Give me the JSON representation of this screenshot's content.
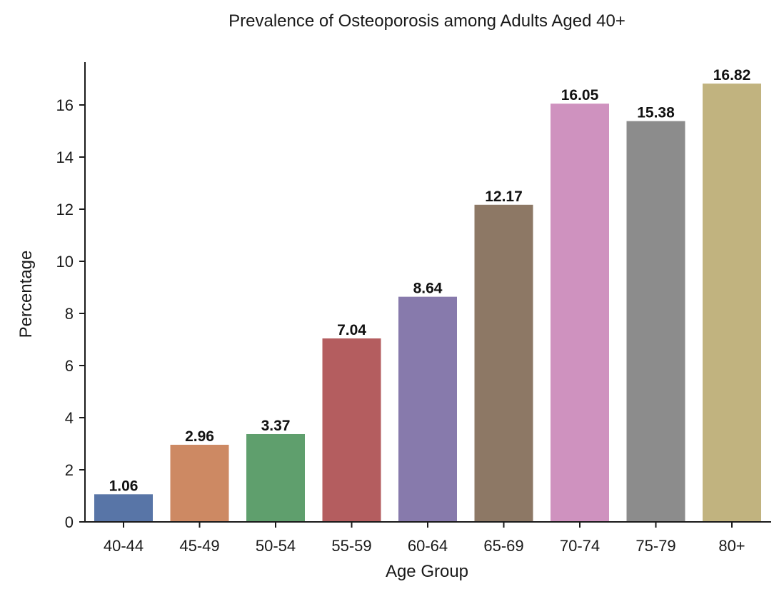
{
  "chart_data": {
    "type": "bar",
    "title": "Prevalence of Osteoporosis among Adults Aged 40+",
    "xlabel": "Age Group",
    "ylabel": "Percentage",
    "categories": [
      "40-44",
      "45-49",
      "50-54",
      "55-59",
      "60-64",
      "65-69",
      "70-74",
      "75-79",
      "80+"
    ],
    "values": [
      1.06,
      2.96,
      3.37,
      7.04,
      8.64,
      12.17,
      16.05,
      15.38,
      16.82
    ],
    "value_labels": [
      "1.06",
      "2.96",
      "3.37",
      "7.04",
      "8.64",
      "12.17",
      "16.05",
      "15.38",
      "16.82"
    ],
    "colors": [
      "#5875a7",
      "#cd8963",
      "#5f9f6d",
      "#b45d5f",
      "#877aac",
      "#8d7865",
      "#cf92bf",
      "#8c8c8c",
      "#c1b37f"
    ],
    "yticks": [
      0,
      2,
      4,
      6,
      8,
      10,
      12,
      14,
      16
    ],
    "ytick_labels": [
      "0",
      "2",
      "4",
      "6",
      "8",
      "10",
      "12",
      "14",
      "16"
    ],
    "ylim": [
      0,
      17.6
    ],
    "grid": false,
    "legend": "none"
  }
}
